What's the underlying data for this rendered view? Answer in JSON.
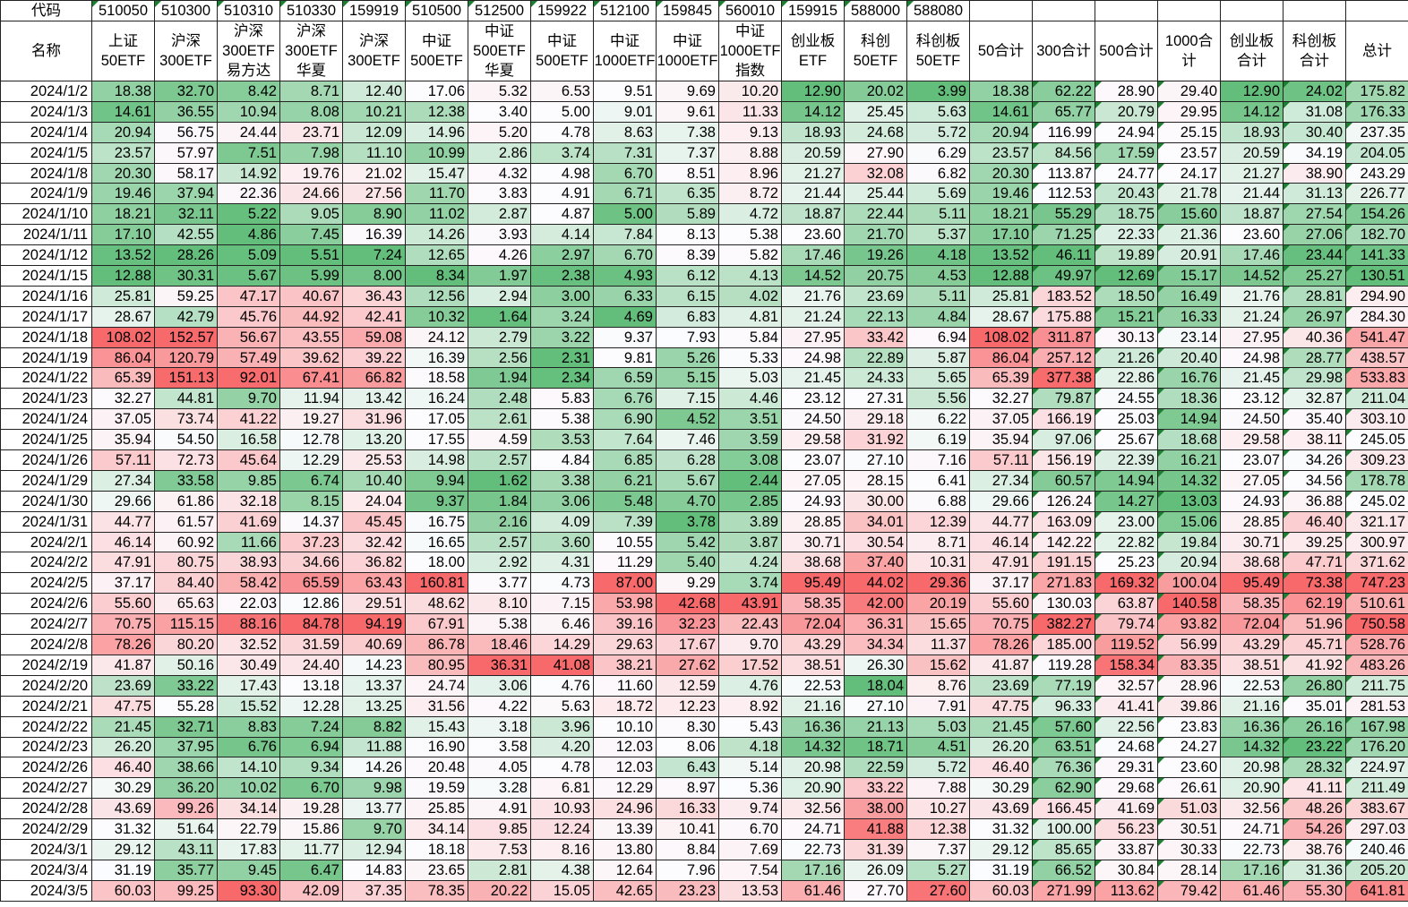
{
  "labels": {
    "code": "代码",
    "name": "名称"
  },
  "codes": [
    "510050",
    "510300",
    "510310",
    "510330",
    "159919",
    "510500",
    "512500",
    "159922",
    "512100",
    "159845",
    "560010",
    "159915",
    "588000",
    "588080",
    "",
    "",
    "",
    "",
    "",
    "",
    ""
  ],
  "names": [
    "上证\n50ETF",
    "沪深\n300ETF",
    "沪深\n300ETF\n易方达",
    "沪深\n300ETF\n华夏",
    "沪深\n300ETF",
    "中证\n500ETF",
    "中证\n500ETF\n华夏",
    "中证\n500ETF",
    "中证\n1000ETF",
    "中证\n1000ETF",
    "中证\n1000ETF\n指数",
    "创业板\nETF",
    "科创\n50ETF",
    "科创板\n50ETF",
    "50合计",
    "300合计",
    "500合计",
    "1000合\n计",
    "创业板\n合计",
    "科创板\n合计",
    "总计"
  ],
  "colors": {
    "low": "#63BE7B",
    "mid": "#FCFCFF",
    "high": "#F8696B",
    "triangle": "#1A7F2E"
  },
  "rows": [
    {
      "date": "2024/1/2",
      "v": [
        "18.38",
        "32.70",
        "8.42",
        "8.71",
        "12.40",
        "17.06",
        "5.32",
        "6.53",
        "9.51",
        "9.69",
        "10.20",
        "12.90",
        "20.02",
        "3.99",
        "18.38",
        "62.22",
        "28.90",
        "29.40",
        "12.90",
        "24.02",
        "175.82"
      ]
    },
    {
      "date": "2024/1/3",
      "v": [
        "14.61",
        "36.55",
        "10.94",
        "8.08",
        "10.21",
        "12.38",
        "3.40",
        "5.00",
        "9.01",
        "9.61",
        "11.33",
        "14.12",
        "25.45",
        "5.63",
        "14.61",
        "65.77",
        "20.79",
        "29.95",
        "14.12",
        "31.08",
        "176.33"
      ]
    },
    {
      "date": "2024/1/4",
      "v": [
        "20.94",
        "56.75",
        "24.44",
        "23.71",
        "12.09",
        "14.96",
        "5.20",
        "4.78",
        "8.63",
        "7.38",
        "9.13",
        "18.93",
        "24.68",
        "5.72",
        "20.94",
        "116.99",
        "24.94",
        "25.15",
        "18.93",
        "30.40",
        "237.35"
      ]
    },
    {
      "date": "2024/1/5",
      "v": [
        "23.57",
        "57.97",
        "7.51",
        "7.98",
        "11.10",
        "10.99",
        "2.86",
        "3.74",
        "7.31",
        "7.37",
        "8.88",
        "20.59",
        "27.90",
        "6.29",
        "23.57",
        "84.56",
        "17.59",
        "23.57",
        "20.59",
        "34.19",
        "204.05"
      ]
    },
    {
      "date": "2024/1/8",
      "v": [
        "20.30",
        "58.17",
        "14.92",
        "19.76",
        "21.02",
        "15.47",
        "4.32",
        "4.98",
        "6.70",
        "8.51",
        "8.96",
        "21.27",
        "32.08",
        "6.82",
        "20.30",
        "113.87",
        "24.77",
        "24.17",
        "21.27",
        "38.90",
        "243.29"
      ]
    },
    {
      "date": "2024/1/9",
      "v": [
        "19.46",
        "37.94",
        "22.36",
        "24.66",
        "27.56",
        "11.70",
        "3.83",
        "4.91",
        "6.71",
        "6.35",
        "8.72",
        "21.44",
        "25.44",
        "5.69",
        "19.46",
        "112.53",
        "20.43",
        "21.78",
        "21.44",
        "31.13",
        "226.77"
      ]
    },
    {
      "date": "2024/1/10",
      "v": [
        "18.21",
        "32.11",
        "5.22",
        "9.05",
        "8.90",
        "11.02",
        "2.87",
        "4.87",
        "5.00",
        "5.89",
        "4.72",
        "18.87",
        "22.44",
        "5.11",
        "18.21",
        "55.29",
        "18.75",
        "15.60",
        "18.87",
        "27.54",
        "154.26"
      ]
    },
    {
      "date": "2024/1/11",
      "v": [
        "17.10",
        "42.55",
        "4.86",
        "7.45",
        "16.39",
        "14.26",
        "3.93",
        "4.14",
        "7.84",
        "8.13",
        "5.38",
        "23.60",
        "21.70",
        "5.37",
        "17.10",
        "71.25",
        "22.33",
        "21.36",
        "23.60",
        "27.06",
        "182.70"
      ]
    },
    {
      "date": "2024/1/12",
      "v": [
        "13.52",
        "28.26",
        "5.09",
        "5.51",
        "7.24",
        "12.65",
        "4.26",
        "2.97",
        "6.70",
        "8.39",
        "5.82",
        "17.46",
        "19.26",
        "4.18",
        "13.52",
        "46.11",
        "19.89",
        "20.91",
        "17.46",
        "23.44",
        "141.33"
      ]
    },
    {
      "date": "2024/1/15",
      "v": [
        "12.88",
        "30.31",
        "5.67",
        "5.99",
        "8.00",
        "8.34",
        "1.97",
        "2.38",
        "4.93",
        "6.12",
        "4.13",
        "14.52",
        "20.75",
        "4.53",
        "12.88",
        "49.97",
        "12.69",
        "15.17",
        "14.52",
        "25.27",
        "130.51"
      ]
    },
    {
      "date": "2024/1/16",
      "v": [
        "25.81",
        "59.25",
        "47.17",
        "40.67",
        "36.43",
        "12.56",
        "2.94",
        "3.00",
        "6.33",
        "6.15",
        "4.02",
        "21.76",
        "23.69",
        "5.11",
        "25.81",
        "183.52",
        "18.50",
        "16.49",
        "21.76",
        "28.81",
        "294.90"
      ]
    },
    {
      "date": "2024/1/17",
      "v": [
        "28.67",
        "42.79",
        "45.76",
        "44.92",
        "42.41",
        "10.32",
        "1.64",
        "3.24",
        "4.69",
        "6.83",
        "4.81",
        "21.24",
        "22.13",
        "4.84",
        "28.67",
        "175.88",
        "15.21",
        "16.33",
        "21.24",
        "26.97",
        "284.30"
      ]
    },
    {
      "date": "2024/1/18",
      "v": [
        "108.02",
        "152.57",
        "56.67",
        "43.55",
        "59.08",
        "24.12",
        "2.79",
        "3.22",
        "9.37",
        "7.93",
        "5.84",
        "27.95",
        "33.42",
        "6.94",
        "108.02",
        "311.87",
        "30.13",
        "23.14",
        "27.95",
        "40.36",
        "541.47"
      ]
    },
    {
      "date": "2024/1/19",
      "v": [
        "86.04",
        "120.79",
        "57.49",
        "39.62",
        "39.22",
        "16.39",
        "2.56",
        "2.31",
        "9.81",
        "5.26",
        "5.33",
        "24.98",
        "22.89",
        "5.87",
        "86.04",
        "257.12",
        "21.26",
        "20.40",
        "24.98",
        "28.77",
        "438.57"
      ]
    },
    {
      "date": "2024/1/22",
      "v": [
        "65.39",
        "151.13",
        "92.01",
        "67.41",
        "66.82",
        "18.58",
        "1.94",
        "2.34",
        "6.59",
        "5.15",
        "5.03",
        "21.45",
        "24.33",
        "5.65",
        "65.39",
        "377.38",
        "22.86",
        "16.76",
        "21.45",
        "29.98",
        "533.83"
      ]
    },
    {
      "date": "2024/1/23",
      "v": [
        "32.27",
        "44.81",
        "9.70",
        "11.94",
        "13.42",
        "16.24",
        "2.48",
        "5.83",
        "6.76",
        "7.15",
        "4.46",
        "23.12",
        "27.31",
        "5.56",
        "32.27",
        "79.87",
        "24.55",
        "18.36",
        "23.12",
        "32.87",
        "211.04"
      ]
    },
    {
      "date": "2024/1/24",
      "v": [
        "37.05",
        "73.74",
        "41.22",
        "19.27",
        "31.96",
        "17.05",
        "2.61",
        "5.38",
        "6.90",
        "4.52",
        "3.51",
        "24.50",
        "29.18",
        "6.22",
        "37.05",
        "166.19",
        "25.03",
        "14.94",
        "24.50",
        "35.40",
        "303.10"
      ]
    },
    {
      "date": "2024/1/25",
      "v": [
        "35.94",
        "54.50",
        "16.58",
        "12.78",
        "13.20",
        "17.55",
        "4.59",
        "3.53",
        "7.64",
        "7.46",
        "3.59",
        "29.58",
        "31.92",
        "6.19",
        "35.94",
        "97.06",
        "25.67",
        "18.68",
        "29.58",
        "38.11",
        "245.05"
      ]
    },
    {
      "date": "2024/1/26",
      "v": [
        "57.11",
        "72.73",
        "45.64",
        "12.29",
        "25.53",
        "14.98",
        "2.57",
        "4.84",
        "6.85",
        "6.28",
        "3.08",
        "23.07",
        "27.10",
        "7.16",
        "57.11",
        "156.19",
        "22.39",
        "16.21",
        "23.07",
        "34.26",
        "309.23"
      ]
    },
    {
      "date": "2024/1/29",
      "v": [
        "27.34",
        "33.58",
        "9.85",
        "6.74",
        "10.40",
        "9.94",
        "1.62",
        "3.38",
        "6.21",
        "5.67",
        "2.44",
        "27.05",
        "28.15",
        "6.41",
        "27.34",
        "60.57",
        "14.94",
        "14.32",
        "27.05",
        "34.56",
        "178.78"
      ]
    },
    {
      "date": "2024/1/30",
      "v": [
        "29.66",
        "61.86",
        "32.18",
        "8.15",
        "24.04",
        "9.37",
        "1.84",
        "3.06",
        "5.48",
        "4.70",
        "2.85",
        "24.93",
        "30.00",
        "6.88",
        "29.66",
        "126.24",
        "14.27",
        "13.03",
        "24.93",
        "36.88",
        "245.02"
      ]
    },
    {
      "date": "2024/1/31",
      "v": [
        "44.77",
        "61.57",
        "41.69",
        "14.37",
        "45.45",
        "16.75",
        "2.16",
        "4.09",
        "7.39",
        "3.78",
        "3.89",
        "28.85",
        "34.01",
        "12.39",
        "44.77",
        "163.09",
        "23.00",
        "15.06",
        "28.85",
        "46.40",
        "321.17"
      ]
    },
    {
      "date": "2024/2/1",
      "v": [
        "46.14",
        "60.92",
        "11.66",
        "37.23",
        "32.42",
        "16.65",
        "2.57",
        "3.60",
        "10.55",
        "5.42",
        "3.87",
        "30.71",
        "30.54",
        "8.71",
        "46.14",
        "142.22",
        "22.82",
        "19.84",
        "30.71",
        "39.25",
        "300.97"
      ]
    },
    {
      "date": "2024/2/2",
      "v": [
        "47.91",
        "80.75",
        "38.93",
        "34.66",
        "36.82",
        "18.00",
        "2.92",
        "4.31",
        "11.29",
        "5.40",
        "4.24",
        "38.68",
        "37.40",
        "10.31",
        "47.91",
        "191.15",
        "25.23",
        "20.94",
        "38.68",
        "47.71",
        "371.62"
      ]
    },
    {
      "date": "2024/2/5",
      "v": [
        "37.17",
        "84.40",
        "58.42",
        "65.59",
        "63.43",
        "160.81",
        "3.77",
        "4.73",
        "87.00",
        "9.29",
        "3.74",
        "95.49",
        "44.02",
        "29.36",
        "37.17",
        "271.83",
        "169.32",
        "100.04",
        "95.49",
        "73.38",
        "747.23"
      ]
    },
    {
      "date": "2024/2/6",
      "v": [
        "55.60",
        "65.63",
        "22.03",
        "12.86",
        "29.51",
        "48.62",
        "8.10",
        "7.15",
        "53.98",
        "42.68",
        "43.91",
        "58.35",
        "42.00",
        "20.19",
        "55.60",
        "130.03",
        "63.87",
        "140.58",
        "58.35",
        "62.19",
        "510.61"
      ]
    },
    {
      "date": "2024/2/7",
      "v": [
        "70.75",
        "115.15",
        "88.16",
        "84.78",
        "94.19",
        "67.91",
        "5.38",
        "6.46",
        "39.16",
        "32.23",
        "22.43",
        "72.04",
        "36.31",
        "15.65",
        "70.75",
        "382.27",
        "79.74",
        "93.82",
        "72.04",
        "51.96",
        "750.58"
      ]
    },
    {
      "date": "2024/2/8",
      "v": [
        "78.26",
        "80.20",
        "32.52",
        "31.59",
        "40.69",
        "86.78",
        "18.46",
        "14.29",
        "29.63",
        "17.67",
        "9.70",
        "43.29",
        "34.34",
        "11.37",
        "78.26",
        "185.00",
        "119.52",
        "56.99",
        "43.29",
        "45.71",
        "528.76"
      ]
    },
    {
      "date": "2024/2/19",
      "v": [
        "41.87",
        "50.16",
        "30.49",
        "24.40",
        "14.23",
        "80.95",
        "36.31",
        "41.08",
        "38.21",
        "27.62",
        "17.52",
        "38.51",
        "26.30",
        "15.62",
        "41.87",
        "119.28",
        "158.34",
        "83.35",
        "38.51",
        "41.92",
        "483.26"
      ]
    },
    {
      "date": "2024/2/20",
      "v": [
        "23.69",
        "33.22",
        "17.43",
        "13.18",
        "13.37",
        "24.74",
        "3.06",
        "4.76",
        "11.60",
        "12.59",
        "4.76",
        "22.53",
        "18.04",
        "8.76",
        "23.69",
        "77.19",
        "32.57",
        "28.96",
        "22.53",
        "26.80",
        "211.75"
      ]
    },
    {
      "date": "2024/2/21",
      "v": [
        "47.75",
        "55.28",
        "15.52",
        "12.28",
        "13.25",
        "31.56",
        "4.22",
        "5.63",
        "18.72",
        "12.23",
        "8.92",
        "21.16",
        "27.10",
        "7.91",
        "47.75",
        "96.33",
        "41.41",
        "39.86",
        "21.16",
        "35.01",
        "281.53"
      ]
    },
    {
      "date": "2024/2/22",
      "v": [
        "21.45",
        "32.71",
        "8.83",
        "7.24",
        "8.82",
        "15.43",
        "3.18",
        "3.96",
        "10.10",
        "8.30",
        "5.43",
        "16.36",
        "21.13",
        "5.03",
        "21.45",
        "57.60",
        "22.56",
        "23.83",
        "16.36",
        "26.16",
        "167.98"
      ]
    },
    {
      "date": "2024/2/23",
      "v": [
        "26.20",
        "37.95",
        "6.76",
        "6.94",
        "11.88",
        "16.90",
        "3.58",
        "4.20",
        "12.03",
        "8.06",
        "4.18",
        "14.32",
        "18.71",
        "4.51",
        "26.20",
        "63.51",
        "24.68",
        "24.27",
        "14.32",
        "23.22",
        "176.20"
      ]
    },
    {
      "date": "2024/2/26",
      "v": [
        "46.40",
        "38.66",
        "14.10",
        "9.34",
        "14.26",
        "20.48",
        "4.05",
        "4.78",
        "12.03",
        "6.43",
        "5.14",
        "20.98",
        "22.59",
        "5.72",
        "46.40",
        "76.36",
        "29.31",
        "23.60",
        "20.98",
        "28.32",
        "224.97"
      ]
    },
    {
      "date": "2024/2/27",
      "v": [
        "30.29",
        "36.20",
        "10.02",
        "6.70",
        "9.98",
        "19.59",
        "3.28",
        "6.81",
        "12.29",
        "8.97",
        "5.36",
        "20.90",
        "33.22",
        "7.88",
        "30.29",
        "62.90",
        "29.68",
        "26.61",
        "20.90",
        "41.11",
        "211.49"
      ]
    },
    {
      "date": "2024/2/28",
      "v": [
        "43.69",
        "99.26",
        "34.14",
        "19.28",
        "13.77",
        "25.85",
        "4.91",
        "10.93",
        "24.96",
        "16.33",
        "9.74",
        "32.56",
        "38.00",
        "10.27",
        "43.69",
        "166.45",
        "41.69",
        "51.03",
        "32.56",
        "48.26",
        "383.67"
      ]
    },
    {
      "date": "2024/2/29",
      "v": [
        "31.32",
        "51.64",
        "22.79",
        "15.86",
        "9.70",
        "34.14",
        "9.85",
        "12.24",
        "13.39",
        "10.41",
        "6.70",
        "24.71",
        "41.88",
        "12.38",
        "31.32",
        "100.00",
        "56.23",
        "30.51",
        "24.71",
        "54.26",
        "297.03"
      ]
    },
    {
      "date": "2024/3/1",
      "v": [
        "29.12",
        "43.11",
        "17.83",
        "11.77",
        "12.94",
        "18.18",
        "7.53",
        "8.16",
        "13.80",
        "8.84",
        "7.69",
        "22.73",
        "31.39",
        "7.37",
        "29.12",
        "85.65",
        "33.87",
        "30.33",
        "22.73",
        "38.76",
        "240.46"
      ]
    },
    {
      "date": "2024/3/4",
      "v": [
        "31.19",
        "35.77",
        "9.45",
        "6.47",
        "14.83",
        "23.65",
        "2.81",
        "4.38",
        "12.64",
        "7.96",
        "7.54",
        "17.16",
        "26.09",
        "5.27",
        "31.19",
        "66.52",
        "30.84",
        "28.14",
        "17.16",
        "31.36",
        "205.20"
      ]
    },
    {
      "date": "2024/3/5",
      "v": [
        "60.03",
        "99.25",
        "93.30",
        "42.09",
        "37.35",
        "78.35",
        "20.22",
        "15.05",
        "42.65",
        "23.23",
        "13.53",
        "61.46",
        "27.70",
        "27.60",
        "60.03",
        "271.99",
        "113.62",
        "79.42",
        "61.46",
        "55.30",
        "641.81"
      ]
    }
  ]
}
